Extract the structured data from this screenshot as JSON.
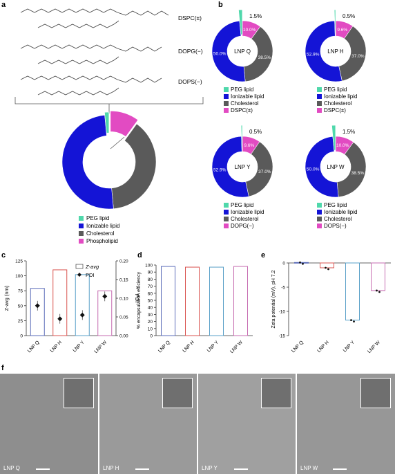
{
  "panels": {
    "a": "a",
    "b": "b",
    "c": "c",
    "d": "d",
    "e": "e",
    "f": "f"
  },
  "lipids": [
    {
      "name": "DSPC(±)",
      "color": "#e24bc2"
    },
    {
      "name": "DOPG(−)",
      "color": "#e24bc2"
    },
    {
      "name": "DOPS(−)",
      "color": "#e24bc2"
    }
  ],
  "colors": {
    "peg": "#4fd8ab",
    "ionizable": "#1414d6",
    "cholesterol": "#5a5a5a",
    "phospholipid": "#e24bc2",
    "lnp_q": "#5a6bb8",
    "lnp_h": "#d9534f",
    "lnp_y": "#5aa0c8",
    "lnp_w": "#c66bb0"
  },
  "legend_a": [
    "PEG lipid",
    "Ionizable lipid",
    "Cholesterol",
    "Phospholipid"
  ],
  "chart_data": [
    {
      "type": "pie",
      "panel": "a",
      "slices": [
        {
          "label": "PEG lipid",
          "value": 1.5
        },
        {
          "label": "Ionizable lipid",
          "value": 50
        },
        {
          "label": "Cholesterol",
          "value": 38.5
        },
        {
          "label": "Phospholipid",
          "value": 10
        }
      ]
    },
    {
      "type": "pie",
      "panel": "b",
      "title": "LNP Q",
      "legend": [
        "PEG lipid",
        "Ionizable lipid",
        "Cholesterol",
        "DSPC(±)"
      ],
      "slices": [
        {
          "label": "PEG lipid",
          "value": 1.5,
          "text": "1.5%"
        },
        {
          "label": "Ionizable lipid",
          "value": 50,
          "text": "50.0%"
        },
        {
          "label": "Cholesterol",
          "value": 38.5,
          "text": "38.5%"
        },
        {
          "label": "DSPC(±)",
          "value": 10,
          "text": "10.0%"
        }
      ]
    },
    {
      "type": "pie",
      "panel": "b",
      "title": "LNP H",
      "legend": [
        "PEG lipid",
        "Ionizable lipid",
        "Cholesterol",
        "DSPC(±)"
      ],
      "slices": [
        {
          "label": "PEG lipid",
          "value": 0.5,
          "text": "0.5%"
        },
        {
          "label": "Ionizable lipid",
          "value": 52.9,
          "text": "52.9%"
        },
        {
          "label": "Cholesterol",
          "value": 37,
          "text": "37.0%"
        },
        {
          "label": "DSPC(±)",
          "value": 9.6,
          "text": "9.6%"
        }
      ]
    },
    {
      "type": "pie",
      "panel": "b",
      "title": "LNP Y",
      "legend": [
        "PEG lipid",
        "Ionizable lipid",
        "Cholesterol",
        "DOPG(−)"
      ],
      "slices": [
        {
          "label": "PEG lipid",
          "value": 0.5,
          "text": "0.5%"
        },
        {
          "label": "Ionizable lipid",
          "value": 52.9,
          "text": "52.9%"
        },
        {
          "label": "Cholesterol",
          "value": 37,
          "text": "37.0%"
        },
        {
          "label": "DOPG(−)",
          "value": 9.6,
          "text": "9.6%"
        }
      ]
    },
    {
      "type": "pie",
      "panel": "b",
      "title": "LNP W",
      "legend": [
        "PEG lipid",
        "Ionizable lipid",
        "Cholesterol",
        "DOPS(−)"
      ],
      "slices": [
        {
          "label": "PEG lipid",
          "value": 1.5,
          "text": "1.5%"
        },
        {
          "label": "Ionizable lipid",
          "value": 50,
          "text": "50.0%"
        },
        {
          "label": "Cholesterol",
          "value": 38.5,
          "text": "38.5%"
        },
        {
          "label": "DOPS(−)",
          "value": 10,
          "text": "10.0%"
        }
      ]
    },
    {
      "type": "bar",
      "panel": "c",
      "categories": [
        "LNP Q",
        "LNP H",
        "LNP Y",
        "LNP W"
      ],
      "series": [
        {
          "name": "Z-avg",
          "values": [
            79,
            110,
            102,
            75
          ]
        },
        {
          "name": "PDI",
          "values": [
            0.08,
            0.045,
            0.055,
            0.105
          ]
        }
      ],
      "ylabel": "Z-avg (nm)",
      "y2label": "PDI",
      "ylim": [
        0,
        125
      ],
      "y2lim": [
        0,
        0.2
      ],
      "yticks": [
        0,
        25,
        50,
        75,
        100,
        125
      ],
      "y2ticks": [
        0,
        0.05,
        0.1,
        0.15,
        0.2
      ]
    },
    {
      "type": "bar",
      "panel": "d",
      "categories": [
        "LNP Q",
        "LNP H",
        "LNP Y",
        "LNP W"
      ],
      "values": [
        98,
        97,
        97,
        98
      ],
      "ylabel": "% encapsulation efficiency",
      "ylim": [
        0,
        100
      ],
      "yticks": [
        0,
        10,
        20,
        30,
        40,
        50,
        60,
        70,
        80,
        90,
        100
      ]
    },
    {
      "type": "bar",
      "panel": "e",
      "categories": [
        "LNP Q",
        "LNP H",
        "LNP Y",
        "LNP W"
      ],
      "values": [
        0.1,
        -1,
        -11.8,
        -5.7
      ],
      "ylabel": "Zeta potential (mV), pH 7.2",
      "ylim": [
        -15,
        0
      ],
      "yticks": [
        0,
        -5,
        -10,
        -15
      ]
    }
  ],
  "micrographs": [
    "LNP Q",
    "LNP H",
    "LNP Y",
    "LNP W"
  ]
}
